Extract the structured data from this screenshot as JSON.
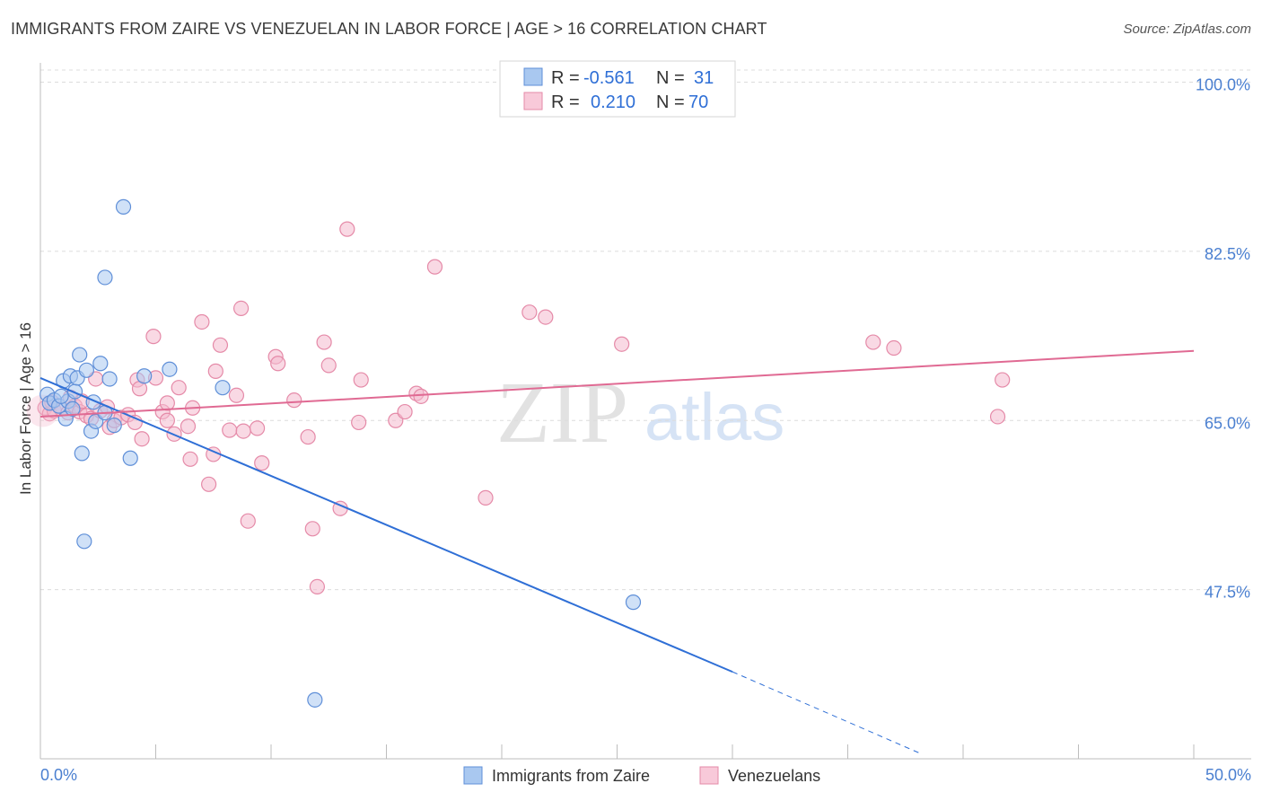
{
  "title": "IMMIGRANTS FROM ZAIRE VS VENEZUELAN IN LABOR FORCE | AGE > 16 CORRELATION CHART",
  "source": "Source: ZipAtlas.com",
  "watermark": {
    "zip": "ZIP",
    "atlas": "atlas"
  },
  "colors": {
    "blue": "#2f6fd6",
    "blue_fill": "#a9c8f0",
    "pink": "#e06a93",
    "pink_fill": "#f4b9cd",
    "grid": "#dcdcdc",
    "tick_label": "#4a7fd0"
  },
  "legend": {
    "rows": [
      {
        "r_label": "R =",
        "r_value": "-0.561",
        "n_label": "N =",
        "n_value": "31"
      },
      {
        "r_label": "R =",
        "r_value": "0.210",
        "n_label": "N =",
        "n_value": "70"
      }
    ]
  },
  "bottom_legend": [
    "Immigrants from Zaire",
    "Venezuelans"
  ],
  "chart_data": {
    "type": "scatter",
    "xlabel": "",
    "ylabel": "In Labor Force | Age > 16",
    "xlim": [
      0,
      50
    ],
    "ylim": [
      30,
      102
    ],
    "x_tick_labels": [
      "0.0%",
      "50.0%"
    ],
    "y_ticks": [
      47.5,
      65.0,
      82.5,
      100.0
    ],
    "y_tick_labels": [
      "47.5%",
      "65.0%",
      "82.5%",
      "100.0%"
    ],
    "grid": "horizontal dashed",
    "series": [
      {
        "name": "Immigrants from Zaire",
        "color": "#2f6fd6",
        "points": [
          [
            0.3,
            67.7
          ],
          [
            0.4,
            66.8
          ],
          [
            0.6,
            67.1
          ],
          [
            0.8,
            66.5
          ],
          [
            1.0,
            69.1
          ],
          [
            1.1,
            65.2
          ],
          [
            1.2,
            67.0
          ],
          [
            1.3,
            69.6
          ],
          [
            1.5,
            68.0
          ],
          [
            1.6,
            69.4
          ],
          [
            1.7,
            71.8
          ],
          [
            1.8,
            61.6
          ],
          [
            1.9,
            52.5
          ],
          [
            2.0,
            70.2
          ],
          [
            2.2,
            63.9
          ],
          [
            2.3,
            66.9
          ],
          [
            2.4,
            64.9
          ],
          [
            2.6,
            70.9
          ],
          [
            2.8,
            65.8
          ],
          [
            3.0,
            69.3
          ],
          [
            3.2,
            64.5
          ],
          [
            3.6,
            87.1
          ],
          [
            2.8,
            79.8
          ],
          [
            3.9,
            61.1
          ],
          [
            4.5,
            69.6
          ],
          [
            5.6,
            70.3
          ],
          [
            7.9,
            68.4
          ],
          [
            11.9,
            36.1
          ],
          [
            25.7,
            46.2
          ],
          [
            0.9,
            67.5
          ],
          [
            1.4,
            66.2
          ]
        ],
        "trend": {
          "x0": 0,
          "y0": 69.4,
          "x1": 30.0,
          "y1": 39.0,
          "dash_to_x": 38.2,
          "dash_to_y": 30.5
        }
      },
      {
        "name": "Venezuelans",
        "color": "#e06a93",
        "points": [
          [
            0.2,
            66.3
          ],
          [
            0.4,
            65.7
          ],
          [
            0.6,
            66.0
          ],
          [
            0.9,
            66.2
          ],
          [
            1.2,
            65.8
          ],
          [
            1.3,
            67.4
          ],
          [
            1.5,
            66.5
          ],
          [
            1.7,
            65.9
          ],
          [
            2.0,
            65.5
          ],
          [
            2.2,
            65.2
          ],
          [
            2.4,
            69.3
          ],
          [
            2.6,
            66.0
          ],
          [
            2.9,
            66.4
          ],
          [
            3.0,
            64.3
          ],
          [
            3.2,
            65.0
          ],
          [
            3.5,
            65.3
          ],
          [
            3.8,
            65.6
          ],
          [
            4.1,
            64.8
          ],
          [
            4.2,
            69.2
          ],
          [
            4.3,
            68.3
          ],
          [
            4.4,
            63.1
          ],
          [
            4.9,
            73.7
          ],
          [
            5.0,
            69.4
          ],
          [
            5.3,
            65.9
          ],
          [
            5.5,
            65.0
          ],
          [
            5.5,
            66.8
          ],
          [
            5.8,
            63.6
          ],
          [
            6.0,
            68.4
          ],
          [
            6.4,
            64.4
          ],
          [
            6.5,
            61.0
          ],
          [
            6.6,
            66.3
          ],
          [
            7.0,
            75.2
          ],
          [
            7.3,
            58.4
          ],
          [
            7.5,
            61.5
          ],
          [
            7.6,
            70.1
          ],
          [
            7.8,
            72.8
          ],
          [
            8.2,
            64.0
          ],
          [
            8.5,
            67.6
          ],
          [
            8.7,
            76.6
          ],
          [
            8.8,
            63.9
          ],
          [
            9.0,
            54.6
          ],
          [
            9.4,
            64.2
          ],
          [
            9.6,
            60.6
          ],
          [
            10.2,
            71.6
          ],
          [
            10.3,
            70.9
          ],
          [
            11.0,
            67.1
          ],
          [
            11.6,
            63.3
          ],
          [
            11.8,
            53.8
          ],
          [
            12.0,
            47.8
          ],
          [
            12.3,
            73.1
          ],
          [
            12.5,
            70.7
          ],
          [
            13.0,
            55.9
          ],
          [
            13.3,
            84.8
          ],
          [
            13.8,
            64.8
          ],
          [
            13.9,
            69.2
          ],
          [
            15.4,
            65.0
          ],
          [
            15.8,
            65.9
          ],
          [
            16.3,
            67.8
          ],
          [
            16.5,
            67.5
          ],
          [
            17.1,
            80.9
          ],
          [
            19.3,
            57.0
          ],
          [
            21.2,
            76.2
          ],
          [
            21.9,
            75.7
          ],
          [
            25.2,
            72.9
          ],
          [
            36.1,
            73.1
          ],
          [
            37.0,
            72.5
          ],
          [
            41.5,
            65.4
          ],
          [
            41.7,
            69.2
          ],
          [
            0.5,
            66.9
          ],
          [
            1.8,
            67.0
          ]
        ],
        "trend": {
          "x0": 0,
          "y0": 65.4,
          "x1": 50.0,
          "y1": 72.2
        }
      }
    ]
  }
}
